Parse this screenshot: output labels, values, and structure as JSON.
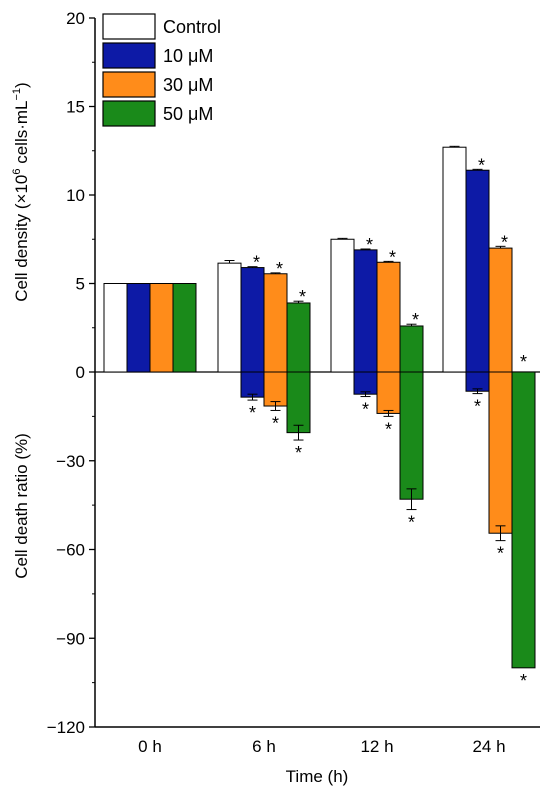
{
  "chart_data": {
    "type": "bar",
    "xlabel": "Time (h)",
    "categories": [
      "0 h",
      "6 h",
      "12 h",
      "24 h"
    ],
    "upper_panel": {
      "ylabel_main": "Cell density (×10",
      "ylabel_exp1": "6",
      "ylabel_mid": " cells·mL",
      "ylabel_exp2": "−1",
      "ylabel_end": ")",
      "ylim": [
        0,
        20
      ],
      "ticks": [
        0,
        5,
        10,
        15,
        20
      ]
    },
    "lower_panel": {
      "ylabel": "Cell death ratio (%)",
      "ylim": [
        -120,
        0
      ],
      "ticks": [
        0,
        -30,
        -60,
        -90,
        -120
      ],
      "tick_labels": [
        "0",
        "−30",
        "−60",
        "−90",
        "−120"
      ]
    },
    "legend_position": "top-left",
    "significance_marker": "*",
    "series": [
      {
        "name": "Control",
        "color": "#ffffff",
        "density": [
          5.0,
          6.15,
          7.5,
          12.7
        ],
        "density_err": [
          0,
          0.15,
          0.05,
          0.05
        ],
        "density_sig": [
          false,
          false,
          false,
          false
        ],
        "death": [
          null,
          null,
          null,
          null
        ],
        "death_err": [
          null,
          null,
          null,
          null
        ],
        "death_sig": [
          false,
          false,
          false,
          false
        ]
      },
      {
        "name": "10 μM",
        "color": "#0d1aa6",
        "density": [
          5.0,
          5.9,
          6.9,
          11.4
        ],
        "density_err": [
          0,
          0.05,
          0.05,
          0.05
        ],
        "density_sig": [
          false,
          true,
          true,
          true
        ],
        "death": [
          null,
          -8.5,
          -7.5,
          -6.5
        ],
        "death_err": [
          null,
          1.0,
          0.8,
          0.8
        ],
        "death_sig": [
          false,
          true,
          true,
          true
        ]
      },
      {
        "name": "30 μM",
        "color": "#ff8c1a",
        "density": [
          5.0,
          5.55,
          6.2,
          7.0
        ],
        "density_err": [
          0,
          0.05,
          0.05,
          0.1
        ],
        "density_sig": [
          false,
          true,
          true,
          true
        ],
        "death": [
          null,
          -11.5,
          -14.0,
          -54.5
        ],
        "death_err": [
          null,
          1.5,
          1.0,
          2.5
        ],
        "death_sig": [
          false,
          true,
          true,
          true
        ]
      },
      {
        "name": "50 μM",
        "color": "#1a8a1a",
        "density": [
          5.0,
          3.9,
          2.6,
          0
        ],
        "density_err": [
          0,
          0.1,
          0.1,
          0
        ],
        "density_sig": [
          false,
          true,
          true,
          true
        ],
        "death": [
          null,
          -20.5,
          -43.0,
          -100.0
        ],
        "death_err": [
          null,
          2.5,
          3.5,
          0
        ],
        "death_sig": [
          false,
          true,
          true,
          true
        ]
      }
    ]
  }
}
